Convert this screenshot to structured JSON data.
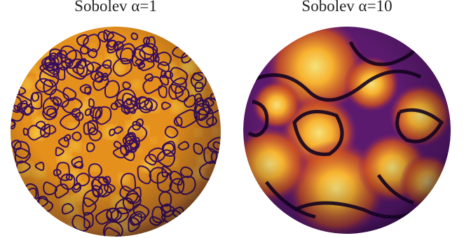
{
  "panels": [
    {
      "title": "Sobolev α=1"
    },
    {
      "title": "Sobolev α=10"
    }
  ]
}
